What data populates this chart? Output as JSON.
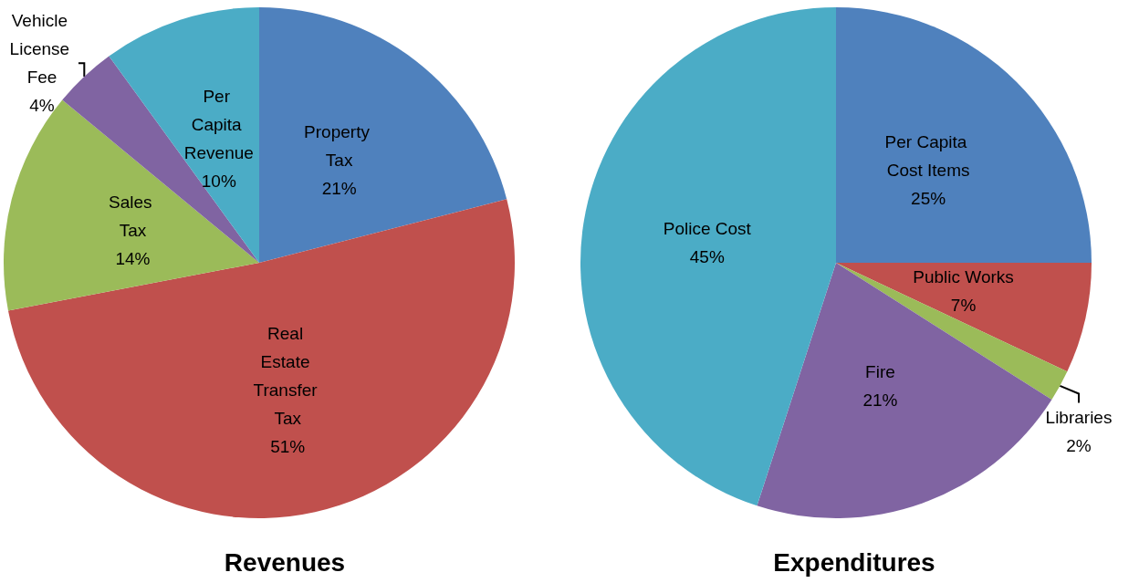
{
  "chart_data": [
    {
      "type": "pie",
      "title": "Revenues",
      "categories": [
        "Property Tax",
        "Real Estate Transfer Tax",
        "Sales Tax",
        "Vehicle License Fee",
        "Per Capita Revenue"
      ],
      "values": [
        21,
        51,
        14,
        4,
        10
      ],
      "value_labels": [
        "21%",
        "51%",
        "14%",
        "4%",
        "10%"
      ],
      "colors": [
        "#4f81bd",
        "#c0504d",
        "#9bbb59",
        "#8064a2",
        "#4bacc6"
      ],
      "data_labels": true
    },
    {
      "type": "pie",
      "title": "Expenditures",
      "categories": [
        "Per Capita Cost Items",
        "Public Works",
        "Libraries",
        "Fire",
        "Police Cost"
      ],
      "values": [
        25,
        7,
        2,
        21,
        45
      ],
      "value_labels": [
        "25%",
        "7%",
        "2%",
        "21%",
        "45%"
      ],
      "colors": [
        "#4f81bd",
        "#c0504d",
        "#9bbb59",
        "#8064a2",
        "#4bacc6"
      ],
      "data_labels": true
    }
  ]
}
